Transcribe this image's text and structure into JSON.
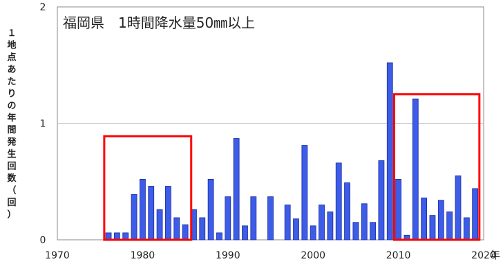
{
  "chart_data": {
    "type": "bar",
    "title": "福岡県　1時間降水量50㎜以上",
    "ylabel": "１地点あたりの年間発生回数（回）",
    "xunit": "年",
    "ylim": [
      0,
      2
    ],
    "xlim": [
      1970,
      2020
    ],
    "yticks": [
      "0",
      "1",
      "2"
    ],
    "xticks": [
      "1970",
      "1980",
      "1990",
      "2000",
      "2010",
      "2020"
    ],
    "grid": true,
    "bar_color": "#3d5ce8",
    "highlight_color": "#ff0000",
    "x": [
      1976,
      1977,
      1978,
      1979,
      1980,
      1981,
      1982,
      1983,
      1984,
      1985,
      1986,
      1987,
      1988,
      1989,
      1990,
      1991,
      1992,
      1993,
      1994,
      1995,
      1996,
      1997,
      1998,
      1999,
      2000,
      2001,
      2002,
      2003,
      2004,
      2005,
      2006,
      2007,
      2008,
      2009,
      2010,
      2011,
      2012,
      2013,
      2014,
      2015,
      2016,
      2017,
      2018,
      2019
    ],
    "values": [
      0.06,
      0.06,
      0.06,
      0.39,
      0.52,
      0.46,
      0.26,
      0.46,
      0.19,
      0.13,
      0.26,
      0.19,
      0.52,
      0.06,
      0.37,
      0.87,
      0.12,
      0.37,
      0,
      0.37,
      0,
      0.3,
      0.18,
      0.81,
      0.12,
      0.3,
      0.24,
      0.66,
      0.49,
      0.15,
      0.31,
      0.15,
      0.68,
      1.52,
      0.52,
      0.04,
      1.21,
      0.36,
      0.21,
      0.34,
      0.24,
      0.55,
      0.19,
      0.44
    ],
    "highlights": [
      {
        "x_range": [
          1975.5,
          1985.7
        ],
        "y_range": [
          0,
          0.89
        ]
      },
      {
        "x_range": [
          2009.5,
          2019.5
        ],
        "y_range": [
          0,
          1.25
        ]
      }
    ]
  }
}
